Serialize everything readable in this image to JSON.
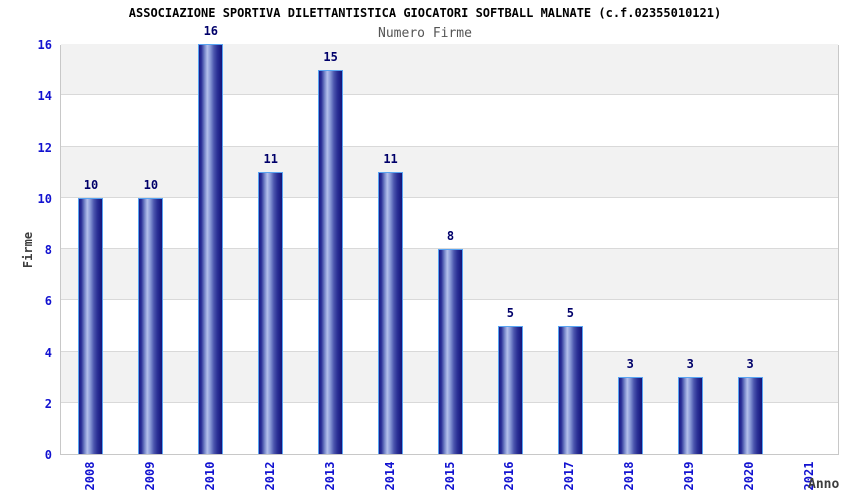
{
  "title": "ASSOCIAZIONE SPORTIVA DILETTANTISTICA GIOCATORI SOFTBALL MALNATE (c.f.02355010121)",
  "chart_data": {
    "type": "bar",
    "title": "Numero Firme",
    "xlabel": "Anno",
    "ylabel": "Firme",
    "categories": [
      "2008",
      "2009",
      "2010",
      "2012",
      "2013",
      "2014",
      "2015",
      "2016",
      "2017",
      "2018",
      "2019",
      "2020",
      "2021"
    ],
    "values": [
      10,
      10,
      16,
      11,
      15,
      11,
      8,
      5,
      5,
      3,
      3,
      3,
      null
    ],
    "ylim": [
      0,
      16
    ],
    "yticks": [
      0,
      2,
      4,
      6,
      8,
      10,
      12,
      14,
      16
    ],
    "grid": true,
    "legend": "none",
    "band_fill_even": "#ffffff",
    "band_fill_odd": "#f2f2f2"
  },
  "colors": {
    "bar_dark": "#14147a",
    "bar_light": "#b3bfec",
    "bar_outline": "#58a4f2",
    "tick_label": "#1212d0",
    "value_label": "#00006a",
    "subtitle": "#555555",
    "axis_label": "#3d3d3d",
    "gridline": "#d9d9d9",
    "plot_border": "#c8c8c8"
  }
}
